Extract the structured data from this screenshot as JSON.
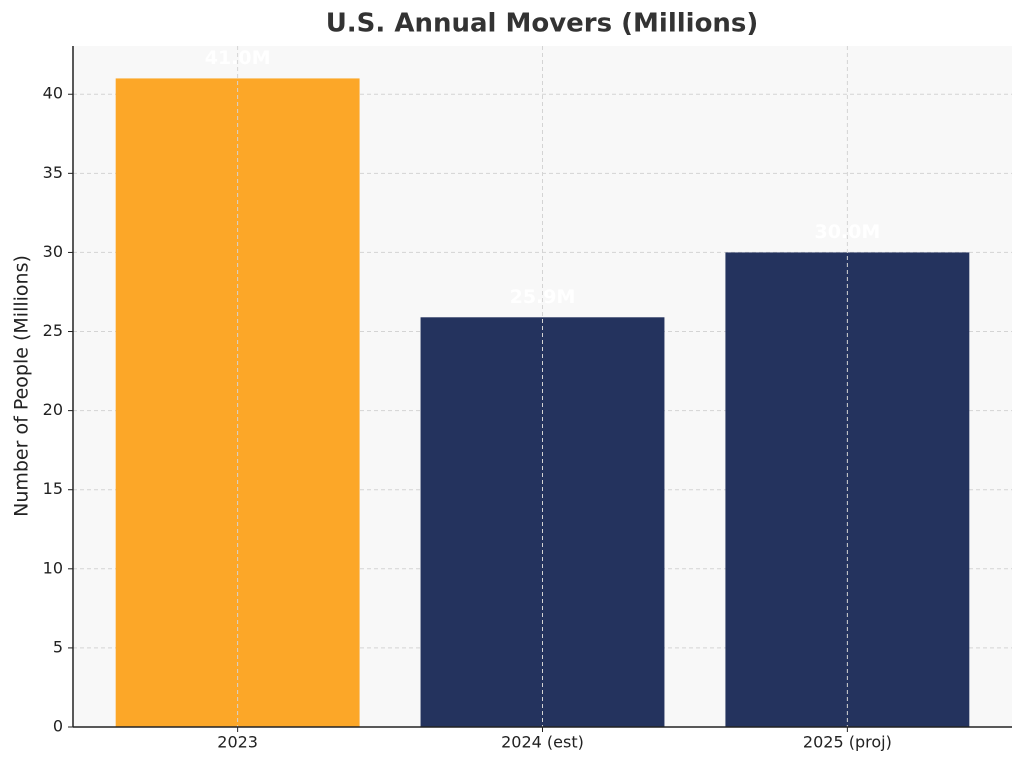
{
  "chart_data": {
    "type": "bar",
    "title": "U.S. Annual Movers (Millions)",
    "y_label": "Number of People (Millions)",
    "categories": [
      "2023",
      "2024 (est)",
      "2025 (proj)"
    ],
    "values": [
      41.0,
      25.9,
      30.0
    ],
    "value_labels": [
      "41.0M",
      "25.9M",
      "30.0M"
    ],
    "colors": [
      "#fca728",
      "#24335e",
      "#24335e"
    ],
    "ylim": [
      0,
      43.05
    ],
    "yticks": [
      0,
      5,
      10,
      15,
      20,
      25,
      30,
      35,
      40
    ],
    "grid": true
  }
}
